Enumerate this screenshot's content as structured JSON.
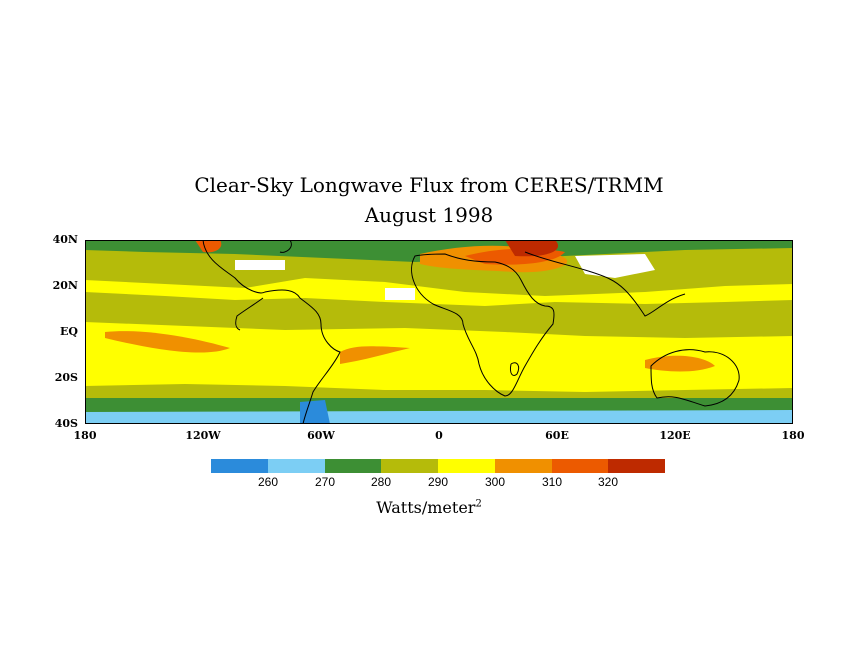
{
  "title": {
    "line1": "Clear-Sky Longwave Flux from CERES/TRMM",
    "line2": "August 1998"
  },
  "axes": {
    "lat_ticks": [
      "40N",
      "20N",
      "EQ",
      "20S",
      "40S"
    ],
    "lon_ticks": [
      "180",
      "120W",
      "60W",
      "0",
      "60E",
      "120E",
      "180"
    ]
  },
  "colorbar": {
    "colors": [
      "#2b8bdb",
      "#7ccef4",
      "#3d8f34",
      "#b5bb0a",
      "#ffff00",
      "#f09000",
      "#ec5a00",
      "#be2a00"
    ],
    "labels": [
      "260",
      "270",
      "280",
      "290",
      "300",
      "310",
      "320"
    ],
    "units_base": "Watts/meter",
    "units_exp": "2"
  },
  "map_colors": {
    "missing": "#ffffff",
    "coast": "#000000"
  }
}
